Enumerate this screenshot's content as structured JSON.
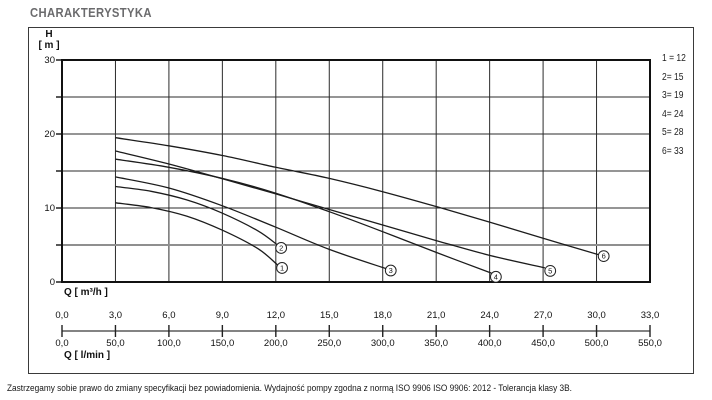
{
  "title": "CHARAKTERYSTYKA",
  "footer": "Zastrzegamy sobie prawo do zmiany specyfikacji bez powiadomienia. Wydajność pompy zgodna z normą ISO 9906 ISO 9906: 2012 - Tolerancja klasy 3B.",
  "chart_data": {
    "type": "line",
    "title": "CHARAKTERYSTYKA",
    "grid": "on",
    "legend_position": "right-outside",
    "legend": [
      "1 = 12",
      "2= 15",
      "3= 19",
      "4= 24",
      "5= 28",
      "6= 33"
    ],
    "h_axis": {
      "name": "H",
      "unit": "[ m ]",
      "min": 0,
      "max": 30,
      "grid_step": 5,
      "highlight_gridline": 5,
      "labeled_ticks": [
        30,
        20,
        10,
        0
      ]
    },
    "q_axis": {
      "label_m3h": "Q [ m³/h ]",
      "label_lmin": "Q [ l/min ]",
      "min": 0,
      "max": 33,
      "grid_step": 3,
      "tick_step_m3h": 3,
      "ticks_m3h": [
        "0,0",
        "3,0",
        "6,0",
        "9,0",
        "12,0",
        "15,0",
        "18,0",
        "21,0",
        "24,0",
        "27,0",
        "30,0",
        "33,0"
      ],
      "ticks_lmin": [
        "0,0",
        "50,0",
        "100,0",
        "150,0",
        "200,0",
        "250,0",
        "300,0",
        "350,0",
        "400,0",
        "450,0",
        "500,0",
        "550,0"
      ]
    },
    "series": [
      {
        "name": "1",
        "marker_at": [
          12.35,
          1.9
        ],
        "points": [
          [
            3,
            10.7
          ],
          [
            5,
            10.05
          ],
          [
            7,
            8.9
          ],
          [
            9,
            7.0
          ],
          [
            11,
            4.5
          ],
          [
            12.1,
            2.3
          ]
        ]
      },
      {
        "name": "2",
        "marker_at": [
          12.3,
          4.6
        ],
        "points": [
          [
            3,
            12.9
          ],
          [
            5,
            12.25
          ],
          [
            7,
            11.1
          ],
          [
            9,
            9.3
          ],
          [
            11,
            6.9
          ],
          [
            12.1,
            5.0
          ]
        ]
      },
      {
        "name": "3",
        "marker_at": [
          18.45,
          1.55
        ],
        "points": [
          [
            3,
            14.2
          ],
          [
            6,
            12.7
          ],
          [
            9,
            10.3
          ],
          [
            12,
            7.4
          ],
          [
            15,
            4.4
          ],
          [
            18.2,
            1.8
          ]
        ]
      },
      {
        "name": "4",
        "marker_at": [
          24.35,
          0.7
        ],
        "points": [
          [
            3,
            16.6
          ],
          [
            6,
            15.5
          ],
          [
            9,
            14.0
          ],
          [
            12,
            12.0
          ],
          [
            15,
            9.5
          ],
          [
            18,
            6.8
          ],
          [
            21,
            4.0
          ],
          [
            24.1,
            1.2
          ]
        ]
      },
      {
        "name": "5",
        "marker_at": [
          27.4,
          1.5
        ],
        "points": [
          [
            3,
            17.7
          ],
          [
            6,
            15.95
          ],
          [
            9,
            13.95
          ],
          [
            12,
            11.9
          ],
          [
            15,
            9.8
          ],
          [
            18,
            7.7
          ],
          [
            21,
            5.6
          ],
          [
            24,
            3.6
          ],
          [
            27.1,
            1.9
          ]
        ]
      },
      {
        "name": "6",
        "marker_at": [
          30.4,
          3.5
        ],
        "points": [
          [
            3,
            19.5
          ],
          [
            6,
            18.4
          ],
          [
            9,
            17.1
          ],
          [
            12,
            15.5
          ],
          [
            15,
            14.0
          ],
          [
            18,
            12.2
          ],
          [
            21,
            10.2
          ],
          [
            24,
            8.1
          ],
          [
            27,
            5.9
          ],
          [
            30.1,
            3.7
          ]
        ]
      }
    ],
    "colors": {
      "curve": "#1c1c1c",
      "gridline": "#2b2b2b",
      "highlight_gridline": "#8f8f8f",
      "plot_border": "#111111",
      "ruler": "#5a5a5a",
      "title_gray": "#6b6b6d"
    }
  }
}
